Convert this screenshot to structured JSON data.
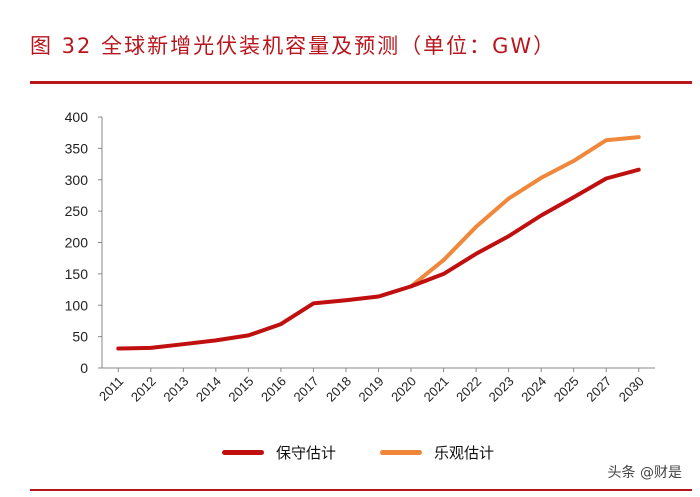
{
  "figure": {
    "title": "图 32 全球新增光伏装机容量及预测（单位：GW）"
  },
  "colors": {
    "accent_red": "#b8161d",
    "series_conservative": "#c00f0f",
    "series_optimistic": "#f0873a"
  },
  "watermark": "头条 @财是",
  "chart_data": {
    "type": "line",
    "title": "全球新增光伏装机容量及预测（单位：GW）",
    "categories": [
      "2011",
      "2012",
      "2013",
      "2014",
      "2015",
      "2016",
      "2017",
      "2018",
      "2019",
      "2020",
      "2021",
      "2022",
      "2023",
      "2024",
      "2025",
      "2027",
      "2030"
    ],
    "ylim": [
      0,
      400
    ],
    "yticks": [
      0,
      50,
      100,
      150,
      200,
      250,
      300,
      350,
      400
    ],
    "grid": false,
    "legend_position": "bottom",
    "series": [
      {
        "name": "保守估计",
        "color": "#c00f0f",
        "values": [
          31,
          32,
          38,
          44,
          52,
          70,
          103,
          108,
          114,
          130,
          150,
          182,
          210,
          243,
          272,
          302,
          316
        ]
      },
      {
        "name": "乐观估计",
        "color": "#f0873a",
        "values": [
          null,
          null,
          null,
          null,
          null,
          null,
          null,
          null,
          null,
          130,
          172,
          225,
          270,
          303,
          330,
          363,
          368
        ]
      }
    ]
  }
}
